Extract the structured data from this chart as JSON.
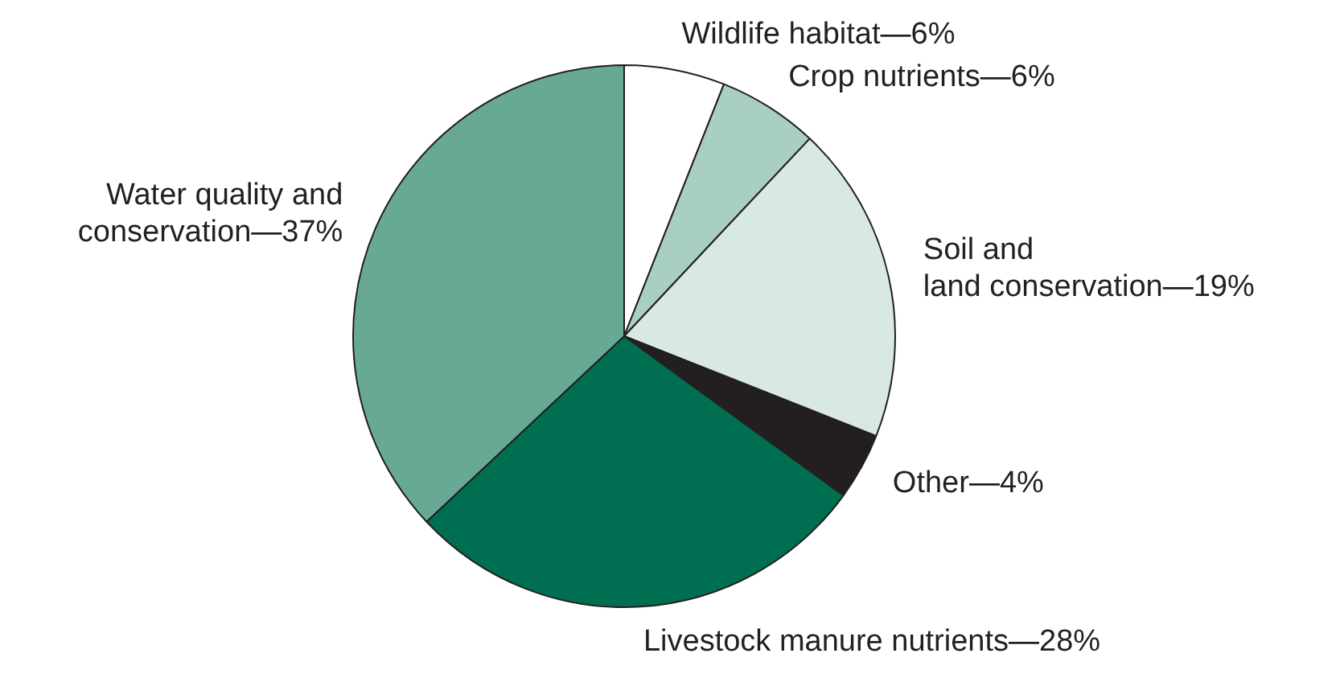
{
  "chart_data": {
    "type": "pie",
    "categories": [
      "Wildlife habitat",
      "Crop nutrients",
      "Soil and land conservation",
      "Other",
      "Livestock manure nutrients",
      "Water quality and conservation"
    ],
    "values": [
      6,
      6,
      19,
      4,
      28,
      37
    ],
    "value_labels": [
      "—6%",
      "—6%",
      "—19%",
      "—4%",
      "—28%",
      "—37%"
    ],
    "colors": [
      "#ffffff",
      "#a9cfc0",
      "#d8e8e2",
      "#231f20",
      "#006f51",
      "#67a995"
    ],
    "legend": false
  }
}
